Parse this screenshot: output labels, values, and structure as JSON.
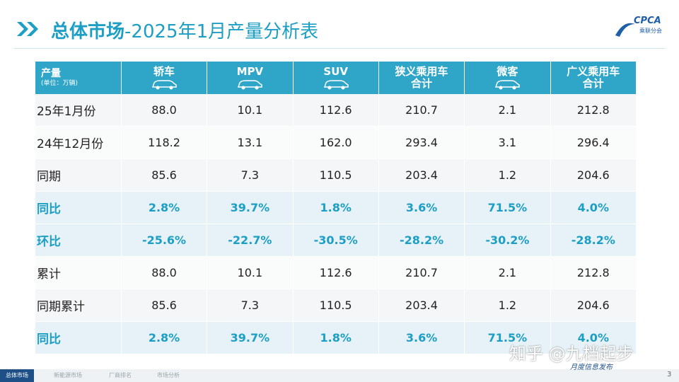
{
  "header": {
    "title_bold": "总体市场",
    "title_rest": "-2025年1月产量分析表",
    "logo": "CPCA",
    "logo_sub": "乘联分会"
  },
  "table": {
    "corner": "产量",
    "unit": "(单位：万辆)",
    "columns": [
      [
        "轿车"
      ],
      [
        "MPV"
      ],
      [
        "SUV"
      ],
      [
        "狭义乘用车",
        "合计"
      ],
      [
        "微客"
      ],
      [
        "广义乘用车",
        "合计"
      ]
    ],
    "rows": [
      [
        "25年1月份",
        "88.0",
        "10.1",
        "112.6",
        "210.7",
        "2.1",
        "212.8"
      ],
      [
        "24年12月份",
        "118.2",
        "13.1",
        "162.0",
        "293.4",
        "3.1",
        "296.4"
      ],
      [
        "同期",
        "85.6",
        "7.3",
        "110.5",
        "203.4",
        "1.2",
        "204.6"
      ],
      [
        "同比",
        "2.8%",
        "39.7%",
        "1.8%",
        "3.6%",
        "71.5%",
        "4.0%"
      ],
      [
        "环比",
        "-25.6%",
        "-22.7%",
        "-30.5%",
        "-28.2%",
        "-30.2%",
        "-28.2%"
      ],
      [
        "累计",
        "88.0",
        "10.1",
        "112.6",
        "210.7",
        "2.1",
        "212.8"
      ],
      [
        "同期累计",
        "85.6",
        "7.3",
        "110.5",
        "203.4",
        "1.2",
        "204.6"
      ],
      [
        "同比",
        "2.8%",
        "39.7%",
        "1.8%",
        "3.6%",
        "71.5%",
        "4.0%"
      ]
    ]
  },
  "footer": {
    "tabs": [
      "总体市场",
      "新能源市场",
      "厂商排名",
      "市场分析"
    ],
    "page": "3",
    "watermark": "知乎 @九档起步",
    "watermark_sub": "月度信息发布"
  }
}
